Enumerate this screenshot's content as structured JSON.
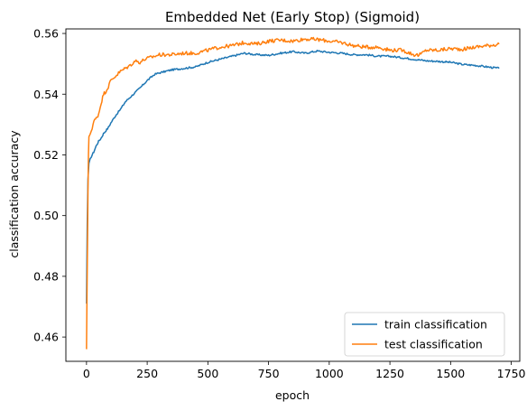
{
  "chart_data": {
    "type": "line",
    "title": "Embedded Net (Early Stop) (Sigmoid)",
    "xlabel": "epoch",
    "ylabel": "classification accuracy",
    "xlim": [
      -85,
      1785
    ],
    "ylim": [
      0.452,
      0.5615
    ],
    "xticks": [
      0,
      250,
      500,
      750,
      1000,
      1250,
      1500,
      1750
    ],
    "xtick_labels": [
      "0",
      "250",
      "500",
      "750",
      "1000",
      "1250",
      "1500",
      "1750"
    ],
    "yticks": [
      0.46,
      0.48,
      0.5,
      0.52,
      0.54,
      0.56
    ],
    "ytick_labels": [
      "0.46",
      "0.48",
      "0.50",
      "0.52",
      "0.54",
      "0.56"
    ],
    "grid": false,
    "legend_position": "lower right",
    "series": [
      {
        "name": "train classification",
        "color": "#1f77b4",
        "x": [
          0,
          3,
          6,
          10,
          15,
          20,
          30,
          40,
          50,
          60,
          70,
          80,
          90,
          100,
          120,
          140,
          160,
          180,
          200,
          220,
          250,
          280,
          300,
          350,
          400,
          450,
          500,
          550,
          600,
          650,
          700,
          750,
          800,
          850,
          900,
          950,
          1000,
          1050,
          1100,
          1150,
          1200,
          1250,
          1300,
          1350,
          1400,
          1450,
          1500,
          1550,
          1600,
          1650,
          1700
        ],
        "y": [
          0.471,
          0.497,
          0.512,
          0.517,
          0.5185,
          0.5195,
          0.521,
          0.523,
          0.5245,
          0.5255,
          0.527,
          0.528,
          0.529,
          0.5305,
          0.533,
          0.535,
          0.5375,
          0.539,
          0.5405,
          0.542,
          0.5445,
          0.5465,
          0.547,
          0.548,
          0.5485,
          0.549,
          0.5505,
          0.5515,
          0.5525,
          0.5535,
          0.553,
          0.5528,
          0.5535,
          0.554,
          0.5535,
          0.5542,
          0.5538,
          0.5535,
          0.553,
          0.553,
          0.5525,
          0.5525,
          0.552,
          0.5515,
          0.551,
          0.5508,
          0.5505,
          0.5498,
          0.5495,
          0.549,
          0.5485
        ]
      },
      {
        "name": "test classification",
        "color": "#ff7f0e",
        "x": [
          0,
          2,
          4,
          6,
          8,
          10,
          15,
          20,
          30,
          40,
          50,
          60,
          70,
          80,
          90,
          100,
          120,
          140,
          160,
          180,
          200,
          220,
          240,
          260,
          280,
          300,
          350,
          400,
          450,
          500,
          550,
          600,
          650,
          700,
          750,
          800,
          850,
          900,
          950,
          1000,
          1050,
          1100,
          1150,
          1200,
          1250,
          1300,
          1350,
          1370,
          1400,
          1450,
          1500,
          1550,
          1600,
          1650,
          1700
        ],
        "y": [
          0.456,
          0.474,
          0.49,
          0.508,
          0.52,
          0.5255,
          0.527,
          0.528,
          0.531,
          0.532,
          0.5335,
          0.537,
          0.54,
          0.541,
          0.5425,
          0.5445,
          0.546,
          0.5475,
          0.5485,
          0.5495,
          0.551,
          0.5505,
          0.5515,
          0.552,
          0.5525,
          0.553,
          0.553,
          0.5535,
          0.5535,
          0.5545,
          0.5555,
          0.556,
          0.557,
          0.5565,
          0.5575,
          0.5578,
          0.5575,
          0.5582,
          0.558,
          0.5575,
          0.557,
          0.556,
          0.5555,
          0.5555,
          0.5545,
          0.5545,
          0.553,
          0.5528,
          0.5545,
          0.5545,
          0.555,
          0.5548,
          0.5555,
          0.556,
          0.5565
        ]
      }
    ]
  }
}
